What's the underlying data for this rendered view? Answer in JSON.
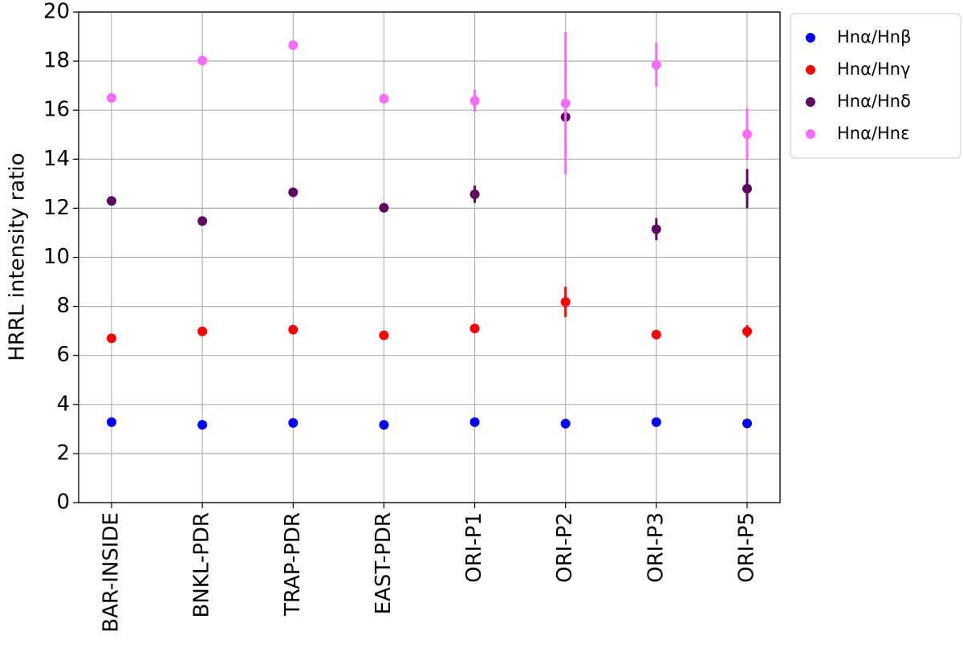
{
  "chart_data": {
    "type": "errorbar-scatter",
    "y_label": "HRRL intensity ratio",
    "categories": [
      "BAR-INSIDE",
      "BNKL-PDR",
      "TRAP-PDR",
      "EAST-PDR",
      "ORI-P1",
      "ORI-P2",
      "ORI-P3",
      "ORI-P5"
    ],
    "series": [
      {
        "name": "Hnα/Hnβ",
        "color": "#0000ff",
        "values": [
          3.28,
          3.17,
          3.25,
          3.17,
          3.28,
          3.22,
          3.28,
          3.23
        ],
        "errors": [
          0.05,
          0.05,
          0.05,
          0.05,
          0.06,
          0.06,
          0.06,
          0.06
        ]
      },
      {
        "name": "Hnα/Hnγ",
        "color": "#ff0000",
        "values": [
          6.7,
          6.98,
          7.05,
          6.82,
          7.1,
          8.18,
          6.85,
          6.98
        ],
        "errors": [
          0.05,
          0.05,
          0.05,
          0.05,
          0.1,
          0.62,
          0.08,
          0.25
        ]
      },
      {
        "name": "Hnα/Hnδ",
        "color": "#5c0a5f",
        "values": [
          12.3,
          11.48,
          12.65,
          12.02,
          12.57,
          15.72,
          11.15,
          12.8
        ],
        "errors": [
          0.05,
          0.05,
          0.05,
          0.05,
          0.35,
          0.1,
          0.45,
          0.8
        ]
      },
      {
        "name": "Hnα/Hnε",
        "color": "#f96cf9",
        "values": [
          16.5,
          18.02,
          18.65,
          16.47,
          16.38,
          16.28,
          17.85,
          15.02
        ],
        "errors": [
          0.05,
          0.05,
          0.05,
          0.05,
          0.45,
          2.9,
          0.9,
          1.05
        ]
      }
    ],
    "ylim": [
      0,
      20
    ],
    "yticks": [
      0,
      2,
      4,
      6,
      8,
      10,
      12,
      14,
      16,
      18,
      20
    ],
    "grid": true,
    "legend": "outside-upper-right"
  }
}
